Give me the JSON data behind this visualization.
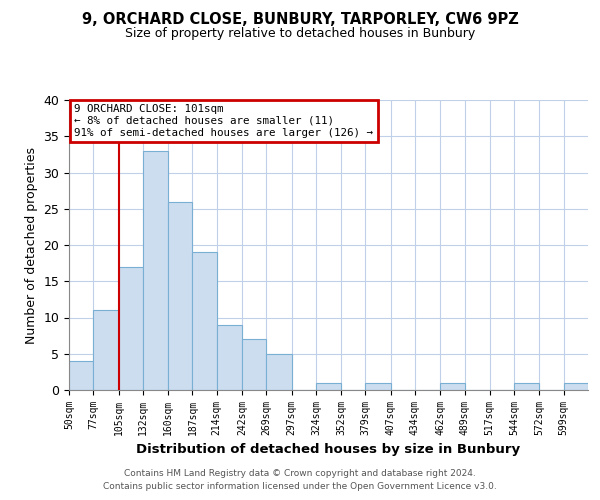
{
  "title1": "9, ORCHARD CLOSE, BUNBURY, TARPORLEY, CW6 9PZ",
  "title2": "Size of property relative to detached houses in Bunbury",
  "xlabel": "Distribution of detached houses by size in Bunbury",
  "ylabel": "Number of detached properties",
  "bar_values": [
    4,
    11,
    17,
    33,
    26,
    19,
    9,
    7,
    5,
    0,
    1,
    0,
    1,
    0,
    0,
    1,
    0,
    0,
    1,
    0,
    1
  ],
  "bin_edges": [
    50,
    77,
    105,
    132,
    160,
    187,
    214,
    242,
    269,
    297,
    324,
    352,
    379,
    407,
    434,
    462,
    489,
    517,
    544,
    572,
    599,
    626
  ],
  "x_tick_labels": [
    "50sqm",
    "77sqm",
    "105sqm",
    "132sqm",
    "160sqm",
    "187sqm",
    "214sqm",
    "242sqm",
    "269sqm",
    "297sqm",
    "324sqm",
    "352sqm",
    "379sqm",
    "407sqm",
    "434sqm",
    "462sqm",
    "489sqm",
    "517sqm",
    "544sqm",
    "572sqm",
    "599sqm"
  ],
  "bar_facecolor": "#ccddf0",
  "bar_edgecolor": "#7aafd4",
  "red_line_x": 105,
  "annotation_text": "9 ORCHARD CLOSE: 101sqm\n← 8% of detached houses are smaller (11)\n91% of semi-detached houses are larger (126) →",
  "annotation_box_color": "#cc0000",
  "ylim": [
    0,
    40
  ],
  "yticks": [
    0,
    5,
    10,
    15,
    20,
    25,
    30,
    35,
    40
  ],
  "footer1": "Contains HM Land Registry data © Crown copyright and database right 2024.",
  "footer2": "Contains public sector information licensed under the Open Government Licence v3.0.",
  "bg_color": "#ffffff",
  "grid_color": "#c0d0e8"
}
